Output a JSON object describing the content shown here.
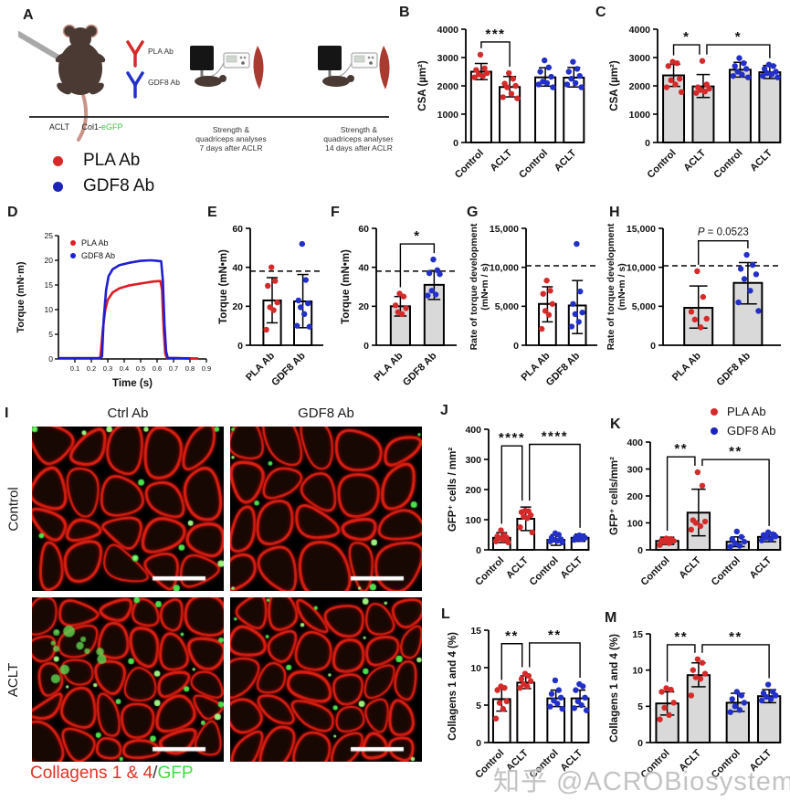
{
  "panels": {
    "A": "A",
    "B": "B",
    "C": "C",
    "D": "D",
    "E": "E",
    "F": "F",
    "G": "G",
    "H": "H",
    "I": "I",
    "J": "J",
    "K": "K",
    "L": "L",
    "M": "M"
  },
  "colors": {
    "pla_red": "#d42a2a",
    "gdf8_blue": "#2330c8",
    "bar_gray": "#d9d9d9",
    "bar_white": "#ffffff",
    "muscle_red": "#a93a30",
    "egfp_green": "#44c544",
    "collagen_caption_red": "#e23225",
    "gfp_caption_green": "#3fdd3f"
  },
  "panel_a": {
    "aclt_label": "ACLT",
    "col1_prefix": "Col1-",
    "col1_egfp": "eGFP",
    "ab1_label": "PLA Ab",
    "ab2_label": "GDF8 Ab",
    "stage7_line1": "Strength &",
    "stage7_line2": "quadriceps analyses",
    "stage7_line3": "7 days after ACLR",
    "stage14_line1": "Strength &",
    "stage14_line2": "quadriceps analyses",
    "stage14_line3": "14 days after ACLR",
    "legend": [
      {
        "label": "PLA Ab",
        "color": "#d42a2a"
      },
      {
        "label": "GDF8 Ab",
        "color": "#1c23b8"
      }
    ]
  },
  "panel_i": {
    "col_headers": [
      "Ctrl Ab",
      "GDF8 Ab"
    ],
    "row_headers": [
      "Control",
      "ACLT"
    ],
    "caption_red": "Collagens 1 & 4",
    "caption_slash": "/",
    "caption_green": "GFP"
  },
  "legend_jk": [
    {
      "label": "PLA Ab",
      "color": "#d42a2a"
    },
    {
      "label": "GDF8 Ab",
      "color": "#1c23b8"
    }
  ],
  "watermark": "知乎 @ACROBiosystems",
  "chart_data": [
    {
      "id": "B",
      "type": "bar",
      "ylabel": "CSA (µm²)",
      "ylim": [
        0,
        4000
      ],
      "yticks": [
        0,
        1000,
        2000,
        3000,
        4000
      ],
      "ytick_labels": [
        "0",
        "1000",
        "2000",
        "3000",
        "4000"
      ],
      "bar_fill": "#ffffff",
      "categories": [
        "Control",
        "ACLT",
        "Control",
        "ACLT"
      ],
      "colors": [
        "#d42a2a",
        "#d42a2a",
        "#2330c8",
        "#2330c8"
      ],
      "values": [
        2500,
        1960,
        2300,
        2290
      ],
      "err": [
        [
          2220,
          2790
        ],
        [
          1610,
          2330
        ],
        [
          1990,
          2640
        ],
        [
          1960,
          2650
        ]
      ],
      "points": [
        [
          3100,
          2620,
          2560,
          2450,
          2400,
          2350,
          2300
        ],
        [
          2450,
          2250,
          2080,
          2000,
          1950,
          1720,
          1600,
          1560
        ],
        [
          2900,
          2650,
          2500,
          2320,
          2150,
          2100,
          2050,
          1950
        ],
        [
          2850,
          2600,
          2500,
          2350,
          2250,
          2100,
          2050,
          1950
        ]
      ],
      "sig": [
        {
          "from": 0,
          "to": 1,
          "y": 3550,
          "label": "***"
        }
      ]
    },
    {
      "id": "C",
      "type": "bar",
      "ylabel": "CSA (µm²)",
      "ylim": [
        0,
        4000
      ],
      "yticks": [
        0,
        1000,
        2000,
        3000,
        4000
      ],
      "ytick_labels": [
        "0",
        "1000",
        "2000",
        "3000",
        "4000"
      ],
      "bar_fill": "#d9d9d9",
      "categories": [
        "Control",
        "ACLT",
        "Control",
        "ACLT"
      ],
      "colors": [
        "#d42a2a",
        "#d42a2a",
        "#2330c8",
        "#2330c8"
      ],
      "values": [
        2370,
        1980,
        2570,
        2480
      ],
      "err": [
        [
          1980,
          2760
        ],
        [
          1590,
          2400
        ],
        [
          2310,
          2830
        ],
        [
          2260,
          2720
        ]
      ],
      "points": [
        [
          2850,
          2800,
          2700,
          2250,
          2200,
          2050,
          1950,
          1780
        ],
        [
          2880,
          2050,
          1950,
          1900,
          1850,
          1800,
          1750
        ],
        [
          2980,
          2800,
          2700,
          2600,
          2500,
          2400,
          2350,
          2300
        ],
        [
          2750,
          2700,
          2600,
          2500,
          2450,
          2400,
          2350,
          2300
        ]
      ],
      "sig": [
        {
          "from": 0,
          "to": 1,
          "y": 3450,
          "label": "*"
        },
        {
          "from": 1,
          "to": 3,
          "y": 3450,
          "label": "*"
        }
      ]
    },
    {
      "id": "D",
      "type": "line",
      "ylabel": "Torque (mN·m)",
      "xlabel": "Time (s)",
      "ylim": [
        0,
        25
      ],
      "yticks": [
        0,
        5,
        10,
        15,
        20,
        25
      ],
      "xlim": [
        0,
        0.9
      ],
      "xticks": [
        0.1,
        0.2,
        0.3,
        0.4,
        0.5,
        0.6,
        0.7,
        0.8,
        0.9
      ],
      "series": [
        {
          "name": "PLA Ab",
          "color": "#e01b24",
          "points": [
            [
              0,
              0.15
            ],
            [
              0.24,
              0.15
            ],
            [
              0.255,
              0.3
            ],
            [
              0.27,
              6
            ],
            [
              0.285,
              10
            ],
            [
              0.3,
              12
            ],
            [
              0.33,
              13.5
            ],
            [
              0.37,
              14.3
            ],
            [
              0.43,
              14.9
            ],
            [
              0.5,
              15.3
            ],
            [
              0.58,
              15.7
            ],
            [
              0.62,
              15.8
            ],
            [
              0.63,
              14
            ],
            [
              0.64,
              6
            ],
            [
              0.65,
              1
            ],
            [
              0.66,
              0.2
            ],
            [
              0.85,
              0.1
            ]
          ]
        },
        {
          "name": "GDF8 Ab",
          "color": "#1f1fd0",
          "points": [
            [
              0,
              0.15
            ],
            [
              0.25,
              0.15
            ],
            [
              0.265,
              0.5
            ],
            [
              0.275,
              8
            ],
            [
              0.29,
              14
            ],
            [
              0.305,
              16.8
            ],
            [
              0.33,
              18.2
            ],
            [
              0.37,
              19
            ],
            [
              0.43,
              19.5
            ],
            [
              0.5,
              19.9
            ],
            [
              0.56,
              20
            ],
            [
              0.6,
              19.9
            ],
            [
              0.625,
              19.8
            ],
            [
              0.635,
              16
            ],
            [
              0.645,
              7
            ],
            [
              0.655,
              1.5
            ],
            [
              0.665,
              0.2
            ],
            [
              0.8,
              0.1
            ]
          ]
        }
      ]
    },
    {
      "id": "E",
      "type": "bar",
      "ylabel": "Torque (mN•m)",
      "ylim": [
        0,
        60
      ],
      "yticks": [
        0,
        20,
        40,
        60
      ],
      "ytick_labels": [
        "0",
        "20",
        "40",
        "60"
      ],
      "bar_fill": "#ffffff",
      "dashed_y": 38,
      "categories": [
        "PLA Ab",
        "GDF8 Ab"
      ],
      "colors": [
        "#d42a2a",
        "#2330c8"
      ],
      "values": [
        23,
        22.5
      ],
      "err": [
        [
          11.5,
          34.7
        ],
        [
          9,
          36.3
        ]
      ],
      "points": [
        [
          40,
          33,
          30.5,
          22,
          19.5,
          18,
          8
        ],
        [
          52,
          33.5,
          23,
          21.5,
          19.5,
          16,
          10,
          9.5
        ]
      ],
      "sig": []
    },
    {
      "id": "F",
      "type": "bar",
      "ylabel": "Torque (mN•m)",
      "ylim": [
        0,
        60
      ],
      "yticks": [
        0,
        20,
        40,
        60
      ],
      "ytick_labels": [
        "0",
        "20",
        "40",
        "60"
      ],
      "bar_fill": "#d9d9d9",
      "dashed_y": 38,
      "categories": [
        "PLA Ab",
        "GDF8 Ab"
      ],
      "colors": [
        "#d42a2a",
        "#2330c8"
      ],
      "values": [
        20,
        31
      ],
      "err": [
        [
          15,
          25
        ],
        [
          23.5,
          38.3
        ]
      ],
      "points": [
        [
          26.5,
          25,
          20.5,
          19,
          17,
          16
        ],
        [
          44,
          38.5,
          37,
          36.5,
          28,
          26,
          25.5
        ]
      ],
      "sig": [
        {
          "from": 0,
          "to": 1,
          "y": 52,
          "label": "*"
        }
      ]
    },
    {
      "id": "G",
      "type": "bar",
      "ylabel": [
        "Rate of torque development",
        "(mN•m / s)"
      ],
      "ylim": [
        0,
        15000
      ],
      "yticks": [
        0,
        5000,
        10000,
        15000
      ],
      "ytick_labels": [
        "0",
        "5,000",
        "10,000",
        "15,000"
      ],
      "bar_fill": "#ffffff",
      "dashed_y": 10200,
      "categories": [
        "PLA Ab",
        "GDF8 Ab"
      ],
      "colors": [
        "#d42a2a",
        "#2330c8"
      ],
      "values": [
        5300,
        5100
      ],
      "err": [
        [
          3000,
          7500
        ],
        [
          1500,
          8300
        ]
      ],
      "points": [
        [
          8300,
          7000,
          6600,
          5300,
          4400,
          3900,
          2100
        ],
        [
          13000,
          6900,
          5300,
          4200,
          4000,
          3000,
          2400
        ]
      ],
      "sig": []
    },
    {
      "id": "H",
      "type": "bar",
      "ylabel": [
        "Rate of torque development",
        "(mN•m / s)"
      ],
      "ylim": [
        0,
        15000
      ],
      "yticks": [
        0,
        5000,
        10000,
        15000
      ],
      "ytick_labels": [
        "0",
        "5,000",
        "10,000",
        "15,000"
      ],
      "bar_fill": "#d9d9d9",
      "dashed_y": 10200,
      "categories": [
        "PLA Ab",
        "GDF8 Ab"
      ],
      "colors": [
        "#d42a2a",
        "#2330c8"
      ],
      "values": [
        4800,
        8000
      ],
      "err": [
        [
          2200,
          7600
        ],
        [
          5300,
          10600
        ]
      ],
      "points": [
        [
          9500,
          6200,
          4300,
          3400,
          3300,
          2300
        ],
        [
          11600,
          10300,
          9800,
          9100,
          8500,
          7000,
          5500,
          4400
        ]
      ],
      "sig": [
        {
          "from": 0,
          "to": 1,
          "y": 13400,
          "label": "P = 0.0523"
        }
      ]
    },
    {
      "id": "J",
      "type": "bar",
      "ylabel": "GFP⁺ cells / mm²",
      "ylim": [
        0,
        400
      ],
      "yticks": [
        0,
        100,
        200,
        300,
        400
      ],
      "ytick_labels": [
        "0",
        "100",
        "200",
        "300",
        "400"
      ],
      "bar_fill": "#ffffff",
      "categories": [
        "Control",
        "ACLT",
        "Control",
        "ACLT"
      ],
      "colors": [
        "#d42a2a",
        "#d42a2a",
        "#2330c8",
        "#2330c8"
      ],
      "values": [
        40,
        103,
        33,
        40
      ],
      "err": [
        [
          24,
          57
        ],
        [
          64,
          142
        ],
        [
          15,
          50
        ],
        [
          28,
          52
        ]
      ],
      "points": [
        [
          65,
          48,
          45,
          40,
          38,
          33,
          28,
          25
        ],
        [
          130,
          128,
          125,
          115,
          110,
          105,
          75,
          58
        ],
        [
          55,
          50,
          40,
          35,
          33,
          30,
          28,
          25
        ],
        [
          48,
          45,
          42,
          40,
          38,
          35,
          33
        ]
      ],
      "sig": [
        {
          "from": 0,
          "to": 1,
          "y": 345,
          "label": "****"
        },
        {
          "from": 1,
          "to": 3,
          "y": 350,
          "label": "****"
        }
      ]
    },
    {
      "id": "K",
      "type": "bar",
      "ylabel": "GFP⁺ cells/mm²",
      "ylim": [
        0,
        400
      ],
      "yticks": [
        0,
        100,
        200,
        300,
        400
      ],
      "ytick_labels": [
        "0",
        "100",
        "200",
        "300",
        "400"
      ],
      "bar_fill": "#d9d9d9",
      "categories": [
        "Control",
        "ACLT",
        "Control",
        "ACLT"
      ],
      "colors": [
        "#d42a2a",
        "#d42a2a",
        "#2330c8",
        "#2330c8"
      ],
      "values": [
        33,
        138,
        30,
        48
      ],
      "err": [
        [
          20,
          47
        ],
        [
          52,
          225
        ],
        [
          12,
          48
        ],
        [
          30,
          62
        ]
      ],
      "points": [
        [
          42,
          40,
          35,
          33,
          30,
          25,
          18
        ],
        [
          288,
          238,
          110,
          105,
          100,
          88,
          75
        ],
        [
          68,
          48,
          40,
          30,
          25,
          15,
          12
        ],
        [
          65,
          58,
          55,
          50,
          45,
          40,
          35
        ]
      ],
      "sig": [
        {
          "from": 0,
          "to": 1,
          "y": 345,
          "label": "**"
        },
        {
          "from": 1,
          "to": 3,
          "y": 335,
          "label": "**"
        }
      ]
    },
    {
      "id": "L",
      "type": "bar",
      "ylabel": "Collagens 1 and 4 (%)",
      "ylim": [
        0,
        15
      ],
      "yticks": [
        0,
        5,
        10,
        15
      ],
      "ytick_labels": [
        "0",
        "5",
        "10",
        "15"
      ],
      "bar_fill": "#ffffff",
      "categories": [
        "Control",
        "ACLT",
        "Control",
        "ACLT"
      ],
      "colors": [
        "#d42a2a",
        "#d42a2a",
        "#2330c8",
        "#2330c8"
      ],
      "values": [
        5.8,
        8.0,
        5.9,
        5.9
      ],
      "err": [
        [
          4.2,
          7.3
        ],
        [
          7.2,
          8.9
        ],
        [
          4.8,
          7.0
        ],
        [
          4.8,
          7.0
        ]
      ],
      "points": [
        [
          7.5,
          7.3,
          7.0,
          5.5,
          5.3,
          4.5,
          3.2
        ],
        [
          9.2,
          8.9,
          8.5,
          8.2,
          7.8,
          7.5,
          7.3
        ],
        [
          8.3,
          7.0,
          6.5,
          6.0,
          5.6,
          5.2,
          4.8,
          4.5
        ],
        [
          7.8,
          7.5,
          7.0,
          6.0,
          5.5,
          5.0,
          4.6,
          4.3
        ]
      ],
      "sig": [
        {
          "from": 0,
          "to": 1,
          "y": 13.2,
          "label": "**"
        },
        {
          "from": 1,
          "to": 3,
          "y": 13.3,
          "label": "**"
        }
      ]
    },
    {
      "id": "M",
      "type": "bar",
      "ylabel": "Collagens 1 and 4 (%)",
      "ylim": [
        0,
        15
      ],
      "yticks": [
        0,
        5,
        10,
        15
      ],
      "ytick_labels": [
        "0",
        "5",
        "10",
        "15"
      ],
      "bar_fill": "#d9d9d9",
      "categories": [
        "Control",
        "ACLT",
        "Control",
        "ACLT"
      ],
      "colors": [
        "#d42a2a",
        "#d42a2a",
        "#2330c8",
        "#2330c8"
      ],
      "values": [
        5.4,
        9.3,
        5.5,
        6.4
      ],
      "err": [
        [
          3.8,
          7.0
        ],
        [
          7.7,
          11.0
        ],
        [
          4.3,
          6.8
        ],
        [
          5.5,
          7.3
        ]
      ],
      "points": [
        [
          7.5,
          7.3,
          7.0,
          5.5,
          4.8,
          3.8,
          3.2
        ],
        [
          11.5,
          11.0,
          10.0,
          9.5,
          9.0,
          8.8,
          6.5
        ],
        [
          7.0,
          6.5,
          6.0,
          5.5,
          5.0,
          4.5,
          4.2
        ],
        [
          8.0,
          7.0,
          6.8,
          6.5,
          6.3,
          6.0,
          5.8
        ]
      ],
      "sig": [
        {
          "from": 0,
          "to": 1,
          "y": 13.5,
          "label": "**"
        },
        {
          "from": 1,
          "to": 3,
          "y": 13.5,
          "label": "**"
        }
      ]
    }
  ]
}
